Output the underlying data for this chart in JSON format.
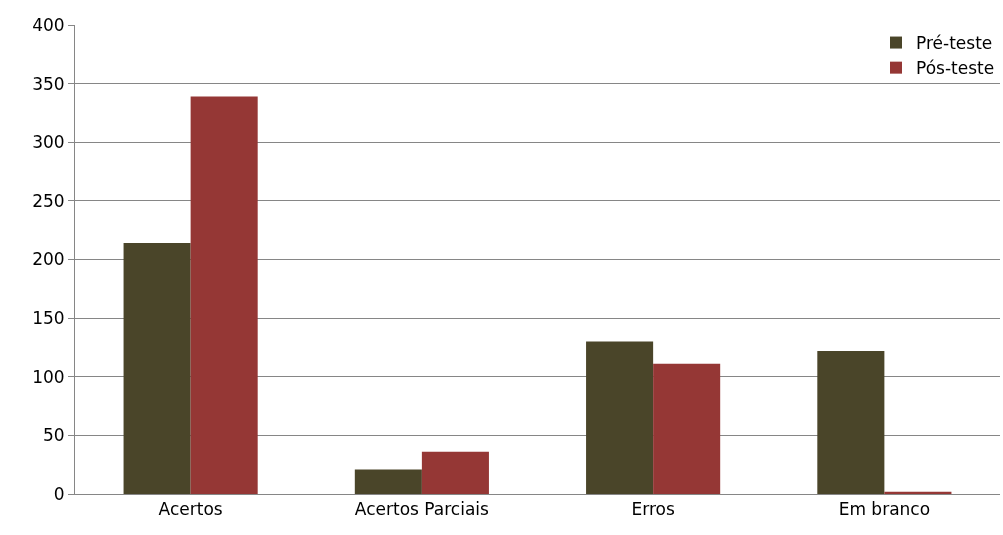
{
  "chart_data": {
    "type": "bar",
    "categories": [
      "Acertos",
      "Acertos Parciais",
      "Erros",
      "Em branco"
    ],
    "series": [
      {
        "name": "Pré-teste",
        "color": "#4a4529",
        "values": [
          214,
          21,
          130,
          122
        ]
      },
      {
        "name": "Pós-teste",
        "color": "#953735",
        "values": [
          339,
          36,
          111,
          2
        ]
      }
    ],
    "ylim": [
      0,
      400
    ],
    "yticks": [
      0,
      50,
      100,
      150,
      200,
      250,
      300,
      350,
      400
    ],
    "grid": "y",
    "legend": "top right"
  }
}
